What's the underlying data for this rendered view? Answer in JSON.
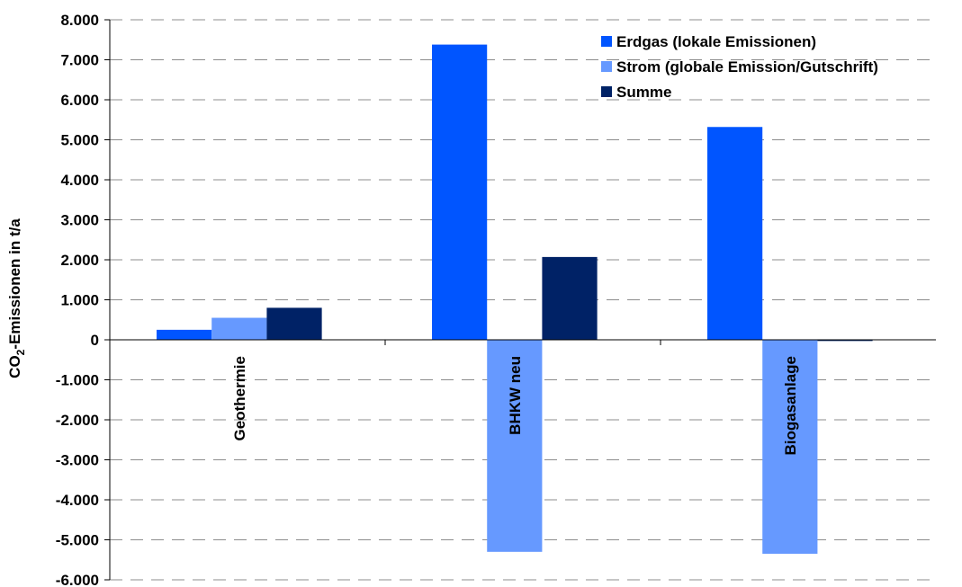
{
  "chart_data": {
    "type": "bar",
    "categories": [
      "Geothermie",
      "BHKW neu",
      "Biogasanlage"
    ],
    "series": [
      {
        "name": "Erdgas (lokale Emissionen)",
        "color": "#0055FF",
        "values": [
          250,
          7380,
          5320
        ]
      },
      {
        "name": "Strom (globale Emission/Gutschrift)",
        "color": "#6699FF",
        "values": [
          550,
          -5300,
          -5350
        ]
      },
      {
        "name": "Summe",
        "color": "#002266",
        "values": [
          800,
          2070,
          -30
        ]
      }
    ],
    "ylabel": {
      "prefix": "CO",
      "subscript": "2",
      "suffix": "-Emissionen in t/a"
    },
    "ylim": [
      -6000,
      8000
    ],
    "yticks": [
      8000,
      7000,
      6000,
      5000,
      4000,
      3000,
      2000,
      1000,
      0,
      -1000,
      -2000,
      -3000,
      -4000,
      -5000,
      -6000
    ],
    "ytick_labels": [
      "8.000",
      "7.000",
      "6.000",
      "5.000",
      "4.000",
      "3.000",
      "2.000",
      "1.000",
      "0",
      "-1.000",
      "-2.000",
      "-3.000",
      "-4.000",
      "-5.000",
      "-6.000"
    ],
    "grid": true,
    "legend_position": "top-right",
    "category_labels_rotated": true
  }
}
